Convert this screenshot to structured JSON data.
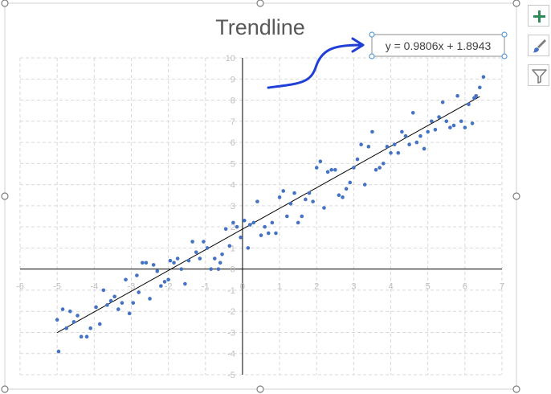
{
  "side_buttons": [
    {
      "name": "chart-elements-button",
      "icon": "plus-icon"
    },
    {
      "name": "chart-styles-button",
      "icon": "brush-icon"
    },
    {
      "name": "chart-filters-button",
      "icon": "funnel-icon"
    }
  ],
  "colors": {
    "points": "#4472C4",
    "trendline": "#000000",
    "arrow": "#1F3FD6",
    "gridlines": "#d9d9d9",
    "handles": "#7f7f7f"
  },
  "chart_data": {
    "type": "scatter",
    "title": "Trendline",
    "xlim": [
      -6,
      7
    ],
    "ylim": [
      -5,
      10
    ],
    "x_ticks": [
      -6,
      -5,
      -4,
      -3,
      -2,
      -1,
      0,
      1,
      2,
      3,
      4,
      5,
      6,
      7
    ],
    "y_ticks": [
      -5,
      -4,
      -3,
      -2,
      -1,
      0,
      1,
      2,
      3,
      4,
      5,
      6,
      7,
      8,
      9,
      10
    ],
    "grid": "dashed major gridlines on both axes",
    "trendline": {
      "type": "linear",
      "slope": 0.9806,
      "intercept": 1.8943,
      "x_range": [
        -5,
        6.4
      ],
      "equation_label": "y = 0.9806x + 1.8943"
    },
    "series": [
      {
        "points": [
          [
            -5.0,
            -2.4
          ],
          [
            -4.96,
            -3.9
          ],
          [
            -4.85,
            -1.9
          ],
          [
            -4.75,
            -2.8
          ],
          [
            -4.65,
            -2.0
          ],
          [
            -4.55,
            -2.5
          ],
          [
            -4.45,
            -2.2
          ],
          [
            -4.35,
            -3.2
          ],
          [
            -4.2,
            -3.2
          ],
          [
            -4.1,
            -2.8
          ],
          [
            -3.95,
            -1.8
          ],
          [
            -3.85,
            -2.6
          ],
          [
            -3.75,
            -1.0
          ],
          [
            -3.65,
            -1.7
          ],
          [
            -3.55,
            -1.5
          ],
          [
            -3.45,
            -1.3
          ],
          [
            -3.35,
            -1.9
          ],
          [
            -3.25,
            -1.6
          ],
          [
            -3.15,
            -0.5
          ],
          [
            -3.05,
            -2.1
          ],
          [
            -2.95,
            -1.6
          ],
          [
            -2.85,
            -0.3
          ],
          [
            -2.8,
            -1.1
          ],
          [
            -2.7,
            0.3
          ],
          [
            -2.6,
            0.3
          ],
          [
            -2.5,
            -1.4
          ],
          [
            -2.4,
            0.2
          ],
          [
            -2.3,
            -0.1
          ],
          [
            -2.2,
            -0.8
          ],
          [
            -2.1,
            -0.6
          ],
          [
            -2.0,
            -0.5
          ],
          [
            -1.95,
            0.4
          ],
          [
            -1.85,
            0.3
          ],
          [
            -1.75,
            0.5
          ],
          [
            -1.65,
            0.0
          ],
          [
            -1.55,
            -0.7
          ],
          [
            -1.45,
            0.4
          ],
          [
            -1.35,
            1.3
          ],
          [
            -1.25,
            0.8
          ],
          [
            -1.15,
            0.5
          ],
          [
            -1.05,
            1.3
          ],
          [
            -0.95,
            1.0
          ],
          [
            -0.85,
            0.0
          ],
          [
            -0.75,
            0.5
          ],
          [
            -0.65,
            0.0
          ],
          [
            -0.6,
            0.3
          ],
          [
            -0.55,
            0.7
          ],
          [
            -0.45,
            1.9
          ],
          [
            -0.35,
            1.1
          ],
          [
            -0.25,
            2.2
          ],
          [
            -0.15,
            2.0
          ],
          [
            -0.05,
            1.5
          ],
          [
            0.05,
            2.3
          ],
          [
            0.15,
            1.0
          ],
          [
            0.2,
            2.1
          ],
          [
            0.3,
            2.2
          ],
          [
            0.4,
            3.2
          ],
          [
            0.5,
            1.6
          ],
          [
            0.6,
            2.0
          ],
          [
            0.7,
            1.7
          ],
          [
            0.8,
            2.2
          ],
          [
            0.9,
            1.7
          ],
          [
            1.0,
            3.4
          ],
          [
            1.1,
            3.7
          ],
          [
            1.2,
            2.5
          ],
          [
            1.3,
            3.1
          ],
          [
            1.4,
            3.6
          ],
          [
            1.5,
            2.2
          ],
          [
            1.6,
            2.5
          ],
          [
            1.7,
            3.3
          ],
          [
            1.8,
            3.6
          ],
          [
            1.9,
            3.2
          ],
          [
            2.0,
            4.8
          ],
          [
            2.1,
            5.1
          ],
          [
            2.2,
            2.9
          ],
          [
            2.3,
            4.6
          ],
          [
            2.4,
            4.7
          ],
          [
            2.5,
            4.7
          ],
          [
            2.6,
            3.5
          ],
          [
            2.7,
            3.4
          ],
          [
            2.8,
            3.8
          ],
          [
            2.9,
            4.1
          ],
          [
            3.0,
            4.8
          ],
          [
            3.1,
            5.2
          ],
          [
            3.2,
            5.9
          ],
          [
            3.3,
            4.0
          ],
          [
            3.4,
            5.8
          ],
          [
            3.5,
            6.5
          ],
          [
            3.6,
            4.7
          ],
          [
            3.7,
            4.8
          ],
          [
            3.8,
            5.0
          ],
          [
            3.9,
            5.8
          ],
          [
            4.0,
            5.5
          ],
          [
            4.1,
            5.9
          ],
          [
            4.2,
            5.5
          ],
          [
            4.3,
            6.5
          ],
          [
            4.4,
            6.3
          ],
          [
            4.5,
            5.9
          ],
          [
            4.6,
            7.4
          ],
          [
            4.7,
            6.0
          ],
          [
            4.8,
            6.3
          ],
          [
            4.9,
            5.7
          ],
          [
            5.0,
            6.5
          ],
          [
            5.1,
            7.0
          ],
          [
            5.2,
            6.6
          ],
          [
            5.3,
            7.2
          ],
          [
            5.4,
            7.9
          ],
          [
            5.5,
            7.0
          ],
          [
            5.6,
            6.7
          ],
          [
            5.7,
            6.8
          ],
          [
            5.8,
            8.2
          ],
          [
            5.9,
            7.0
          ],
          [
            6.0,
            6.7
          ],
          [
            6.1,
            7.8
          ],
          [
            6.2,
            6.9
          ],
          [
            6.25,
            8.1
          ],
          [
            6.3,
            8.2
          ],
          [
            6.4,
            8.6
          ],
          [
            6.5,
            9.1
          ]
        ]
      }
    ]
  }
}
